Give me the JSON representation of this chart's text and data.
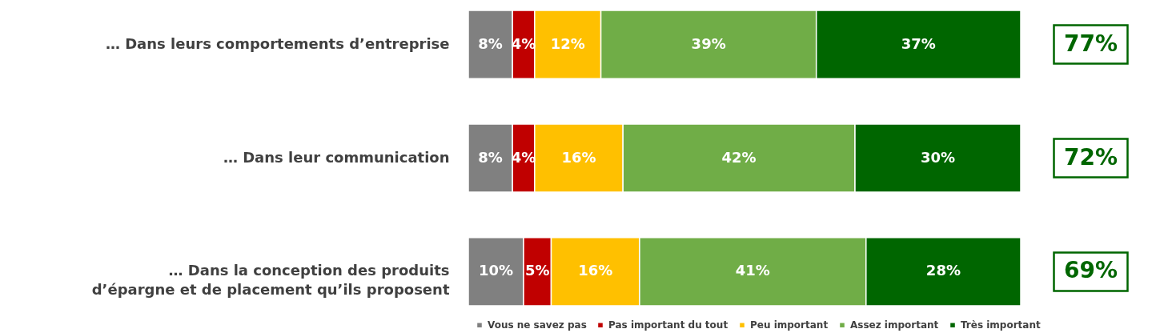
{
  "chart_data": {
    "type": "bar",
    "orientation": "horizontal",
    "stacked": true,
    "legend": "bottom right",
    "categories": [
      "… Dans leurs comportements d’entreprise",
      "… Dans leur communication",
      "… Dans la conception des produits d’épargne et de placement qu’ils proposent"
    ],
    "series": [
      {
        "name": "Vous ne savez pas",
        "color": "#808080",
        "values": [
          8,
          8,
          10
        ],
        "value_labels": [
          "8%",
          "8%",
          "10%"
        ]
      },
      {
        "name": "Pas important du tout",
        "color": "#c00000",
        "values": [
          4,
          4,
          5
        ],
        "value_labels": [
          "4%",
          "4%",
          "5%"
        ]
      },
      {
        "name": "Peu important",
        "color": "#ffc000",
        "values": [
          12,
          16,
          16
        ],
        "value_labels": [
          "12%",
          "16%",
          "16%"
        ]
      },
      {
        "name": "Assez important",
        "color": "#70ad47",
        "values": [
          39,
          42,
          41
        ],
        "value_labels": [
          "39%",
          "42%",
          "41%"
        ]
      },
      {
        "name": "Très important",
        "color": "#006600",
        "values": [
          37,
          30,
          28
        ],
        "value_labels": [
          "37%",
          "30%",
          "28%"
        ]
      }
    ],
    "annotations": [
      "77%",
      "72%",
      "69%"
    ]
  }
}
